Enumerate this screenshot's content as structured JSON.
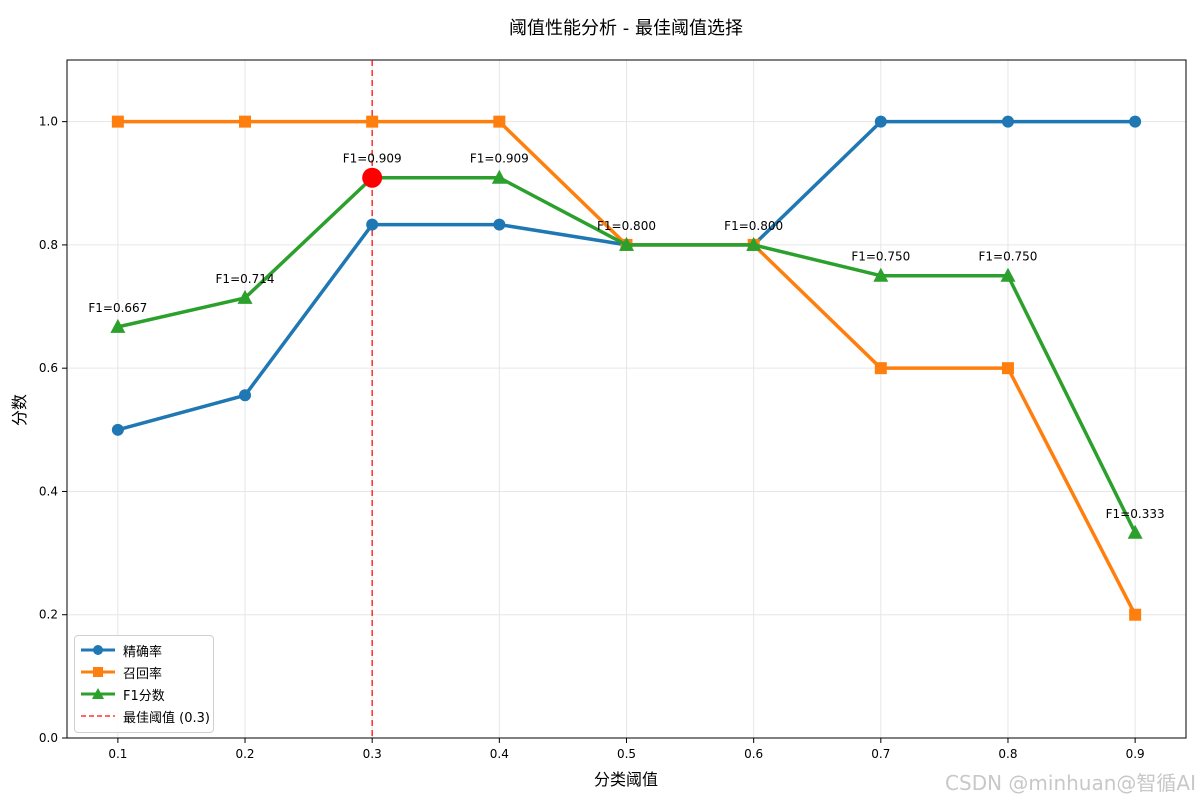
{
  "title": "阈值性能分析 - 最佳阈值选择",
  "watermark": "CSDN @minhuan@智循AI",
  "chart_data": {
    "type": "line",
    "title": "阈值性能分析 - 最佳阈值选择",
    "xlabel": "分类阈值",
    "ylabel": "分数",
    "x": [
      0.1,
      0.2,
      0.3,
      0.4,
      0.5,
      0.6,
      0.7,
      0.8,
      0.9
    ],
    "x_ticks": [
      "0.1",
      "0.2",
      "0.3",
      "0.4",
      "0.5",
      "0.6",
      "0.7",
      "0.8",
      "0.9"
    ],
    "y_ticks": [
      "0.0",
      "0.2",
      "0.4",
      "0.6",
      "0.8",
      "1.0"
    ],
    "ylim": [
      0,
      1.1
    ],
    "grid": true,
    "legend_position": "lower-left",
    "series": [
      {
        "name": "精确率",
        "color": "#1f77b4",
        "marker": "circle",
        "values": [
          0.5,
          0.556,
          0.833,
          0.833,
          0.8,
          0.8,
          1.0,
          1.0,
          1.0
        ]
      },
      {
        "name": "召回率",
        "color": "#ff7f0e",
        "marker": "square",
        "values": [
          1.0,
          1.0,
          1.0,
          1.0,
          0.8,
          0.8,
          0.6,
          0.6,
          0.2
        ]
      },
      {
        "name": "F1分数",
        "color": "#2ca02c",
        "marker": "triangle",
        "values": [
          0.667,
          0.714,
          0.909,
          0.909,
          0.8,
          0.8,
          0.75,
          0.75,
          0.333
        ]
      }
    ],
    "f1_labels": [
      "F1=0.667",
      "F1=0.714",
      "F1=0.909",
      "F1=0.909",
      "F1=0.800",
      "F1=0.800",
      "F1=0.750",
      "F1=0.750",
      "F1=0.333"
    ],
    "best_threshold": {
      "label": "最佳阈值 (0.3)",
      "x": 0.3,
      "y": 0.909,
      "color": "#ff0000"
    }
  }
}
